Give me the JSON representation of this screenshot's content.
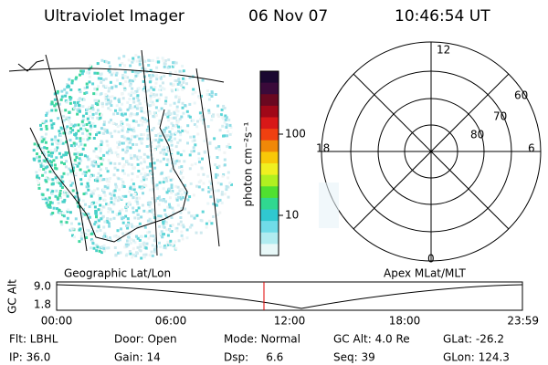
{
  "header": {
    "instrument": "Ultraviolet Imager",
    "date": "06 Nov 07",
    "time": "10:46:54 UT"
  },
  "colorbar": {
    "label": "photon cm⁻²s⁻¹",
    "ticks": [
      "100",
      "10"
    ]
  },
  "polar": {
    "mlt_labels": [
      "12",
      "18",
      "6",
      "0"
    ],
    "lat_labels": [
      "60",
      "70",
      "80"
    ]
  },
  "altitude_plot": {
    "left_title": "Geographic Lat/Lon",
    "right_title": "Apex MLat/MLT",
    "y_label": "GC Alt",
    "y_labels": [
      "9.0",
      "1.8"
    ],
    "x_labels": [
      "00:00",
      "06:00",
      "12:00",
      "18:00",
      "23:59"
    ]
  },
  "info": [
    [
      "Flt: LBHL",
      "Door: Open",
      "Mode: Normal",
      "GC Alt: 4.0 Re",
      "GLat: -26.2"
    ],
    [
      "IP: 36.0",
      "Gain: 14",
      "Dsp:     6.6",
      "Seq: 39",
      "GLon: 124.3"
    ]
  ]
}
